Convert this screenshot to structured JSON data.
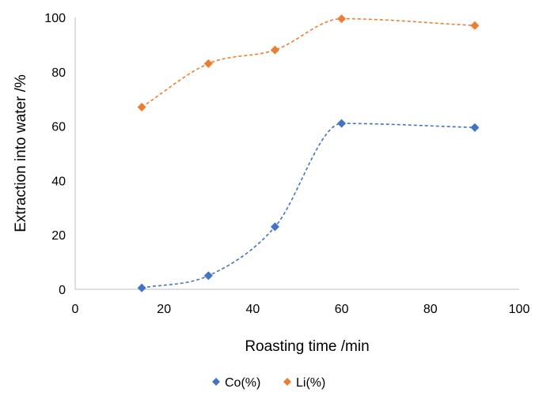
{
  "chart_data": {
    "type": "scatter",
    "xlabel": "Roasting time /min",
    "ylabel": "Extraction into water /%",
    "xlim": [
      0,
      100
    ],
    "ylim": [
      0,
      100
    ],
    "x_ticks": [
      "0",
      "20",
      "40",
      "60",
      "80",
      "100"
    ],
    "y_ticks": [
      "0",
      "20",
      "40",
      "60",
      "80",
      "100"
    ],
    "grid": false,
    "legend_position": "bottom",
    "series": [
      {
        "name": "Co(%)",
        "color": "#4472c4",
        "marker": "diamond",
        "trendline": "dashed",
        "x": [
          15,
          30,
          45,
          60,
          90
        ],
        "y": [
          0.5,
          5,
          23,
          61,
          59.5
        ]
      },
      {
        "name": "Li(%)",
        "color": "#ed7d31",
        "marker": "diamond",
        "trendline": "dashed",
        "x": [
          15,
          30,
          45,
          60,
          90
        ],
        "y": [
          67,
          83,
          88,
          99.5,
          97
        ]
      }
    ]
  }
}
